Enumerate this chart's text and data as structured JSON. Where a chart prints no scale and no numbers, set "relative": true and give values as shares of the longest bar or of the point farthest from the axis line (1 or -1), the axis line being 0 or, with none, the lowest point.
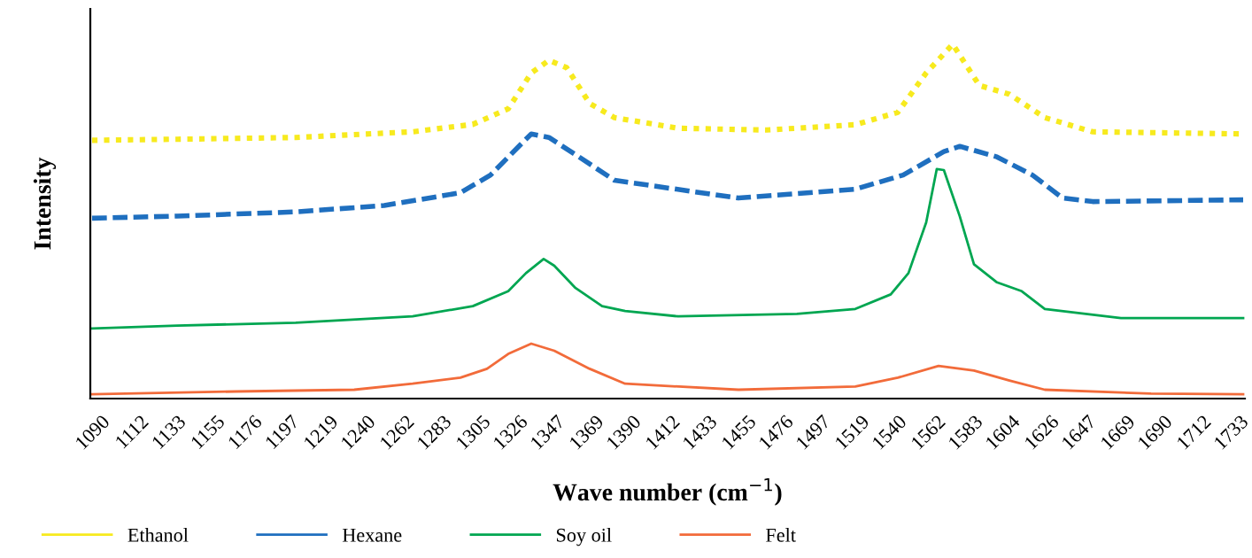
{
  "chart_data": {
    "type": "line",
    "relative": true,
    "xlabel": "Wave number (cm$^{−1}$)",
    "ylabel": "Intensity",
    "xlim": [
      1084,
      1736
    ],
    "xticks": [
      1090,
      1112,
      1133,
      1155,
      1176,
      1197,
      1219,
      1240,
      1262,
      1283,
      1305,
      1326,
      1347,
      1369,
      1390,
      1412,
      1433,
      1455,
      1476,
      1497,
      1519,
      1540,
      1562,
      1583,
      1604,
      1626,
      1647,
      1669,
      1690,
      1712,
      1733
    ],
    "grid": false,
    "legend": "bottom",
    "tick_labels": "x",
    "series": [
      {
        "name": "Ethanol",
        "color": "#f7ea1e",
        "line_style": "dotted",
        "x": [
          1085,
          1133,
          1200,
          1266,
          1300,
          1320,
          1333,
          1343,
          1353,
          1366,
          1380,
          1416,
          1466,
          1516,
          1540,
          1556,
          1571,
          1586,
          1603,
          1623,
          1650,
          1735
        ],
        "values": [
          0.729,
          0.732,
          0.737,
          0.753,
          0.774,
          0.818,
          0.919,
          0.955,
          0.934,
          0.833,
          0.793,
          0.763,
          0.758,
          0.773,
          0.808,
          0.919,
          1.0,
          0.884,
          0.859,
          0.793,
          0.753,
          0.747
        ]
      },
      {
        "name": "Hexane",
        "color": "#1f6fbf",
        "line_style": "dashed",
        "x": [
          1085,
          1133,
          1200,
          1250,
          1293,
          1310,
          1323,
          1333,
          1343,
          1360,
          1380,
          1450,
          1516,
          1543,
          1566,
          1575,
          1596,
          1616,
          1633,
          1650,
          1735
        ],
        "values": [
          0.509,
          0.515,
          0.527,
          0.545,
          0.581,
          0.631,
          0.697,
          0.747,
          0.737,
          0.682,
          0.616,
          0.566,
          0.591,
          0.631,
          0.697,
          0.712,
          0.682,
          0.631,
          0.566,
          0.556,
          0.561
        ]
      },
      {
        "name": "Soy oil",
        "color": "#00a651",
        "line_style": "solid",
        "x": [
          1085,
          1133,
          1200,
          1266,
          1300,
          1320,
          1330,
          1340,
          1346,
          1358,
          1373,
          1386,
          1416,
          1483,
          1516,
          1536,
          1546,
          1556,
          1562,
          1566,
          1575,
          1583,
          1596,
          1610,
          1623,
          1666,
          1735
        ],
        "values": [
          0.198,
          0.206,
          0.214,
          0.232,
          0.261,
          0.303,
          0.354,
          0.394,
          0.375,
          0.312,
          0.261,
          0.247,
          0.232,
          0.239,
          0.253,
          0.294,
          0.354,
          0.497,
          0.648,
          0.645,
          0.514,
          0.379,
          0.328,
          0.303,
          0.253,
          0.227,
          0.227
        ]
      },
      {
        "name": "Felt",
        "color": "#f26b3a",
        "line_style": "solid",
        "x": [
          1085,
          1166,
          1233,
          1266,
          1293,
          1308,
          1320,
          1333,
          1346,
          1366,
          1386,
          1450,
          1516,
          1540,
          1563,
          1583,
          1603,
          1623,
          1683,
          1735
        ],
        "values": [
          0.012,
          0.02,
          0.025,
          0.042,
          0.059,
          0.084,
          0.126,
          0.155,
          0.135,
          0.084,
          0.042,
          0.025,
          0.034,
          0.059,
          0.092,
          0.079,
          0.051,
          0.025,
          0.014,
          0.012
        ]
      }
    ]
  }
}
